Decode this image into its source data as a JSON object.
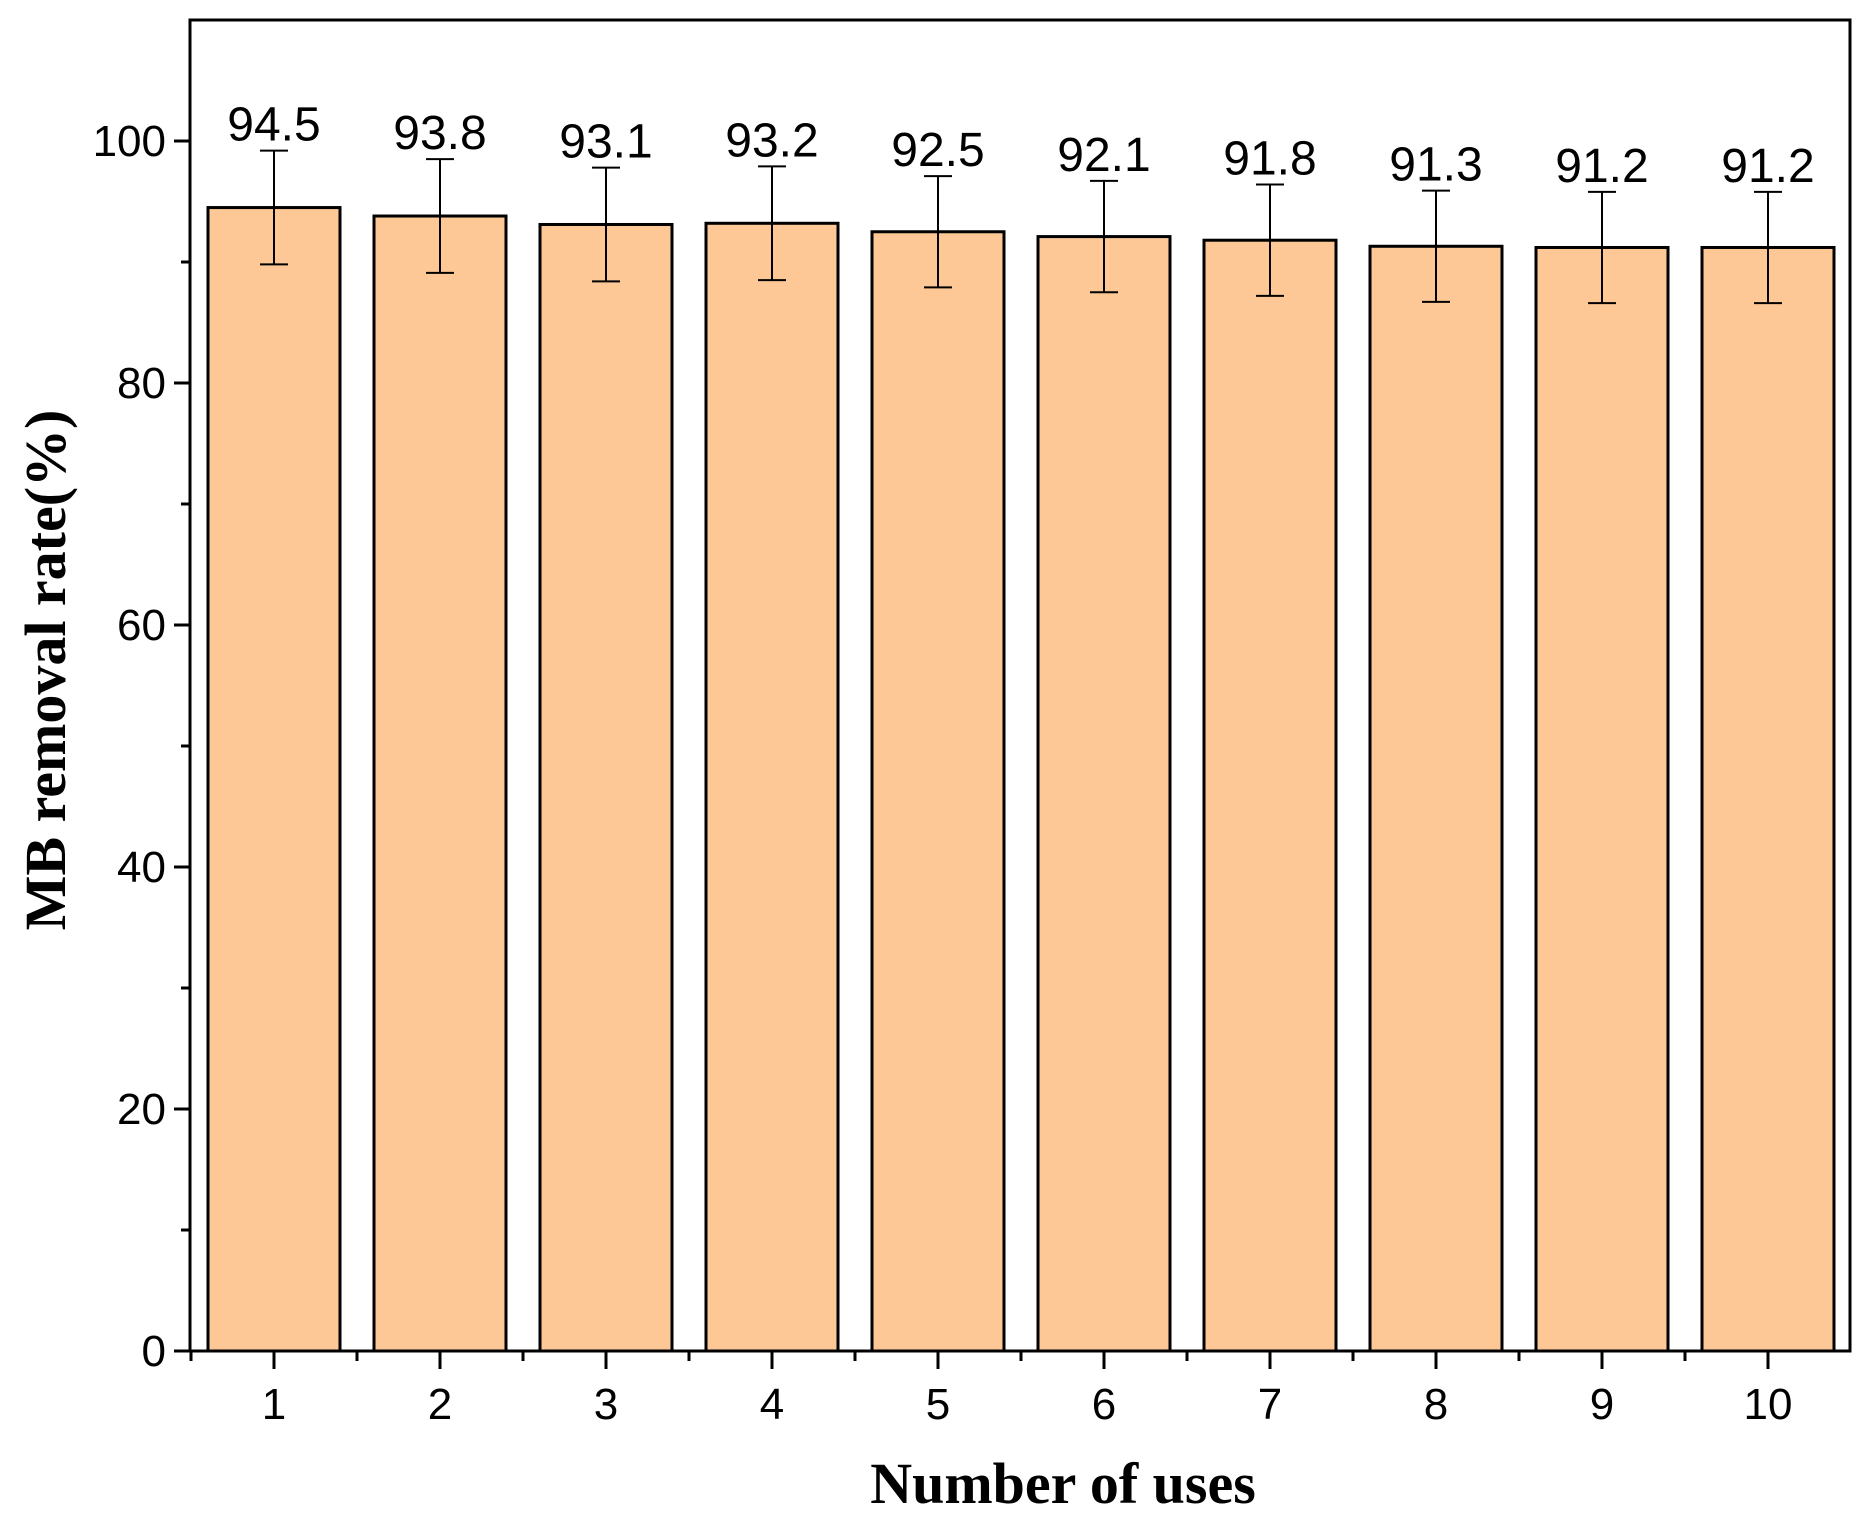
{
  "chart_data": {
    "type": "bar",
    "categories": [
      "1",
      "2",
      "3",
      "4",
      "5",
      "6",
      "7",
      "8",
      "9",
      "10"
    ],
    "values": [
      94.5,
      93.8,
      93.1,
      93.2,
      92.5,
      92.1,
      91.8,
      91.3,
      91.2,
      91.2
    ],
    "data_labels": [
      "94.5",
      "93.8",
      "93.1",
      "93.2",
      "92.5",
      "92.1",
      "91.8",
      "91.3",
      "91.2",
      "91.2"
    ],
    "error": [
      4.7,
      4.7,
      4.7,
      4.7,
      4.6,
      4.6,
      4.6,
      4.6,
      4.6,
      4.6
    ],
    "title": "",
    "xlabel": "Number of uses",
    "ylabel": "MB removal rate(%)",
    "ylim": [
      0,
      110
    ],
    "yticks": [
      0,
      20,
      40,
      60,
      80,
      100
    ],
    "yticks_labels": [
      "0",
      "20",
      "40",
      "60",
      "80",
      "100"
    ],
    "grid": false,
    "legend": "none",
    "colors": {
      "bar_fill": "#fdc895",
      "bar_stroke": "#000000",
      "axis": "#000000"
    }
  }
}
